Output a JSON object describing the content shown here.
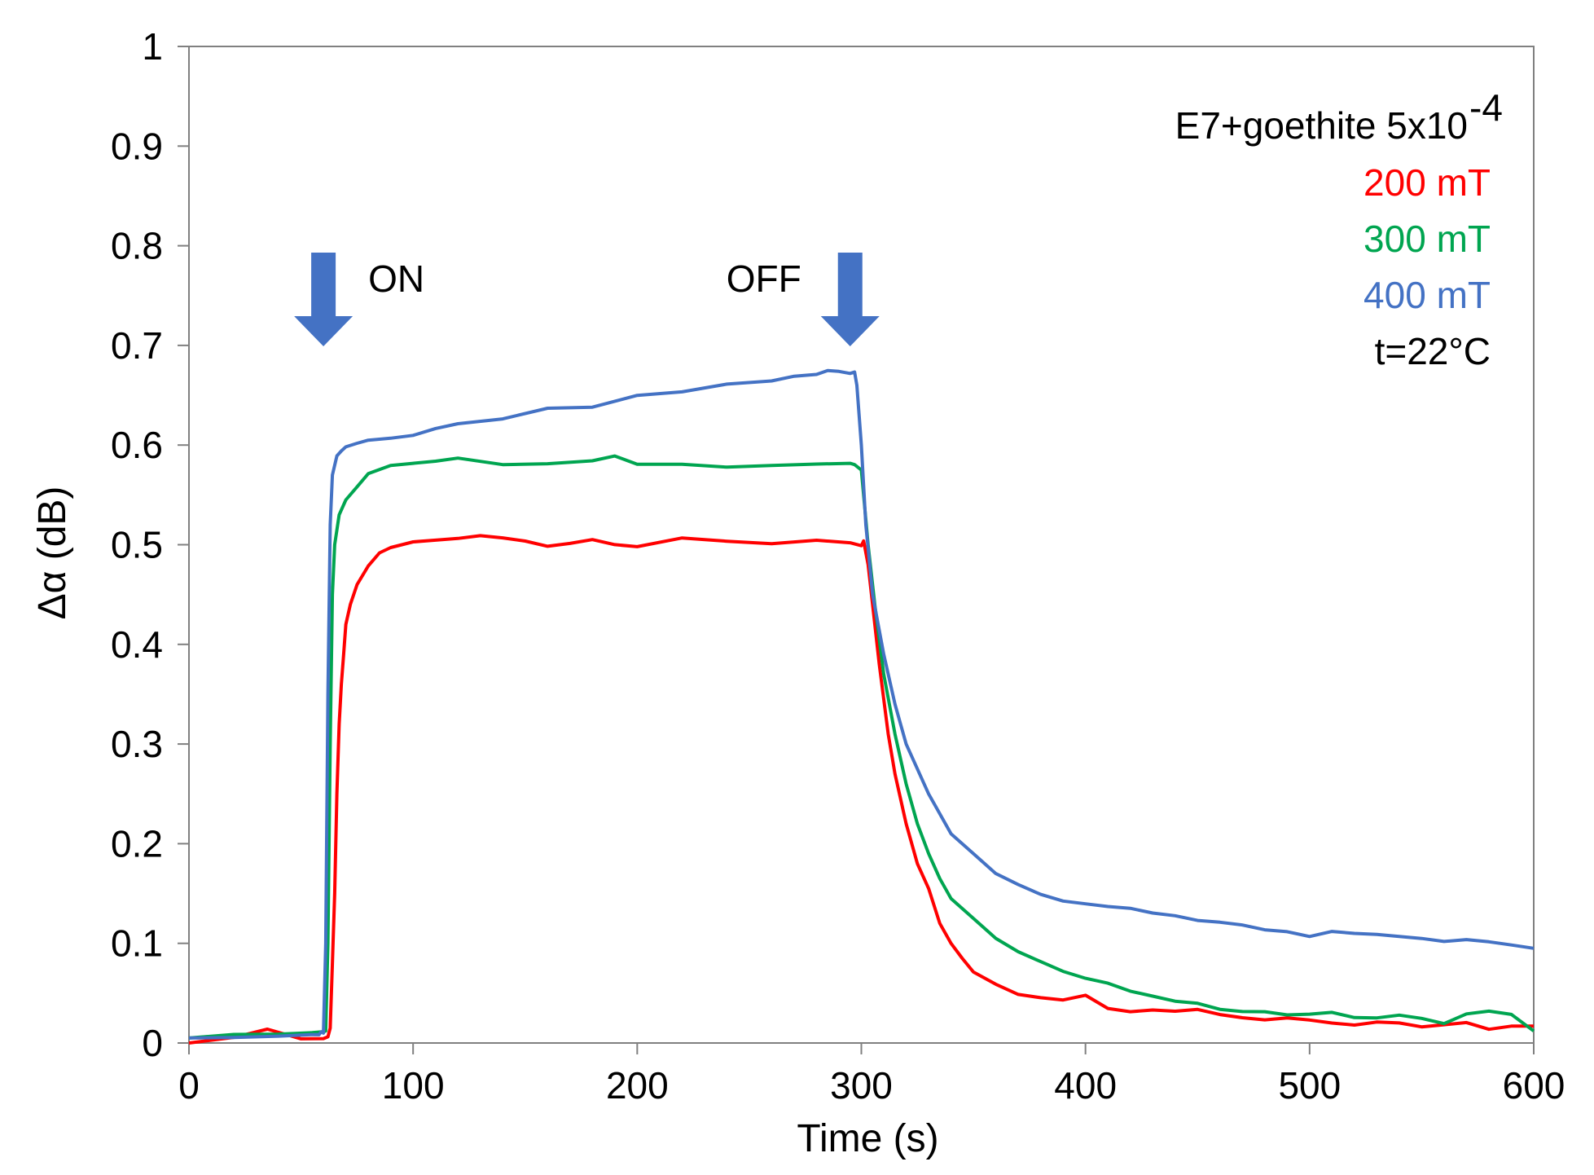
{
  "chart_data": {
    "type": "line",
    "title": "",
    "xlabel": "Time (s)",
    "ylabel": "Δα (dB)",
    "xlim": [
      0,
      600
    ],
    "ylim": [
      0,
      1
    ],
    "xticks": [
      0,
      100,
      200,
      300,
      400,
      500,
      600
    ],
    "yticks": [
      0,
      0.1,
      0.2,
      0.3,
      0.4,
      0.5,
      0.6,
      0.7,
      0.8,
      0.9,
      1
    ],
    "xtick_labels": [
      "0",
      "100",
      "200",
      "300",
      "400",
      "500",
      "600"
    ],
    "ytick_labels": [
      "0",
      "0.1",
      "0.2",
      "0.3",
      "0.4",
      "0.5",
      "0.6",
      "0.7",
      "0.8",
      "0.9",
      "1"
    ],
    "grid": false,
    "legend_position": "top-right",
    "legend": {
      "header": "E7+goethite 5x10",
      "header_superscript": "-4",
      "footer": "t=22°C"
    },
    "annotations": [
      {
        "text": "ON",
        "arrow_at_x": 60,
        "arrow_color": "#4472C4"
      },
      {
        "text": "OFF",
        "arrow_at_x": 295,
        "arrow_color": "#4472C4"
      }
    ],
    "series": [
      {
        "name": "200 mT",
        "color": "#FF0000",
        "x": [
          0,
          20,
          35,
          50,
          60,
          62,
          63,
          64,
          65,
          66,
          67,
          68,
          69,
          70,
          72,
          75,
          80,
          85,
          90,
          100,
          110,
          120,
          130,
          140,
          150,
          160,
          170,
          180,
          190,
          200,
          220,
          240,
          260,
          280,
          295,
          300,
          301,
          303,
          305,
          308,
          312,
          315,
          320,
          325,
          330,
          335,
          340,
          345,
          350,
          360,
          370,
          380,
          390,
          400,
          410,
          420,
          430,
          440,
          450,
          460,
          470,
          480,
          490,
          500,
          510,
          520,
          530,
          540,
          550,
          560,
          570,
          580,
          590,
          600
        ],
        "y": [
          0.0,
          0.005,
          0.012,
          0.005,
          0.005,
          0.008,
          0.015,
          0.08,
          0.15,
          0.25,
          0.32,
          0.36,
          0.39,
          0.42,
          0.44,
          0.46,
          0.48,
          0.49,
          0.497,
          0.503,
          0.505,
          0.507,
          0.51,
          0.508,
          0.505,
          0.5,
          0.503,
          0.507,
          0.502,
          0.5,
          0.505,
          0.505,
          0.5,
          0.505,
          0.5,
          0.5,
          0.502,
          0.48,
          0.44,
          0.38,
          0.31,
          0.27,
          0.22,
          0.18,
          0.155,
          0.12,
          0.1,
          0.085,
          0.07,
          0.058,
          0.048,
          0.045,
          0.043,
          0.048,
          0.035,
          0.032,
          0.034,
          0.033,
          0.035,
          0.03,
          0.027,
          0.025,
          0.027,
          0.025,
          0.022,
          0.02,
          0.023,
          0.022,
          0.018,
          0.02,
          0.022,
          0.015,
          0.018,
          0.017
        ]
      },
      {
        "name": "300 mT",
        "color": "#00A550",
        "x": [
          0,
          20,
          40,
          55,
          60,
          61,
          62,
          63,
          64,
          65,
          67,
          70,
          75,
          80,
          90,
          100,
          110,
          120,
          140,
          160,
          180,
          190,
          200,
          220,
          240,
          260,
          280,
          295,
          297,
          300,
          303,
          306,
          310,
          315,
          320,
          325,
          330,
          335,
          340,
          350,
          360,
          370,
          380,
          390,
          400,
          410,
          420,
          430,
          440,
          450,
          460,
          470,
          480,
          490,
          500,
          510,
          520,
          530,
          540,
          550,
          560,
          570,
          580,
          590,
          600
        ],
        "y": [
          0.005,
          0.008,
          0.01,
          0.012,
          0.012,
          0.012,
          0.1,
          0.3,
          0.45,
          0.5,
          0.53,
          0.545,
          0.56,
          0.57,
          0.578,
          0.58,
          0.582,
          0.585,
          0.582,
          0.58,
          0.585,
          0.59,
          0.582,
          0.58,
          0.578,
          0.58,
          0.58,
          0.58,
          0.58,
          0.575,
          0.5,
          0.44,
          0.37,
          0.31,
          0.26,
          0.22,
          0.19,
          0.165,
          0.145,
          0.125,
          0.105,
          0.09,
          0.08,
          0.07,
          0.063,
          0.058,
          0.05,
          0.045,
          0.04,
          0.038,
          0.032,
          0.03,
          0.03,
          0.027,
          0.028,
          0.03,
          0.025,
          0.025,
          0.028,
          0.025,
          0.02,
          0.03,
          0.033,
          0.03,
          0.012
        ]
      },
      {
        "name": "400 mT",
        "color": "#4472C4",
        "x": [
          0,
          20,
          40,
          55,
          58,
          59,
          60,
          61,
          62,
          63,
          64,
          66,
          68,
          70,
          75,
          80,
          90,
          100,
          110,
          120,
          140,
          160,
          180,
          200,
          220,
          240,
          260,
          270,
          280,
          285,
          290,
          295,
          297,
          298,
          300,
          302,
          305,
          310,
          315,
          320,
          330,
          340,
          350,
          360,
          370,
          380,
          390,
          400,
          410,
          420,
          430,
          440,
          450,
          460,
          470,
          480,
          490,
          500,
          510,
          520,
          530,
          540,
          550,
          560,
          570,
          580,
          590,
          600
        ],
        "y": [
          0.005,
          0.005,
          0.008,
          0.01,
          0.01,
          0.01,
          0.01,
          0.1,
          0.35,
          0.52,
          0.57,
          0.59,
          0.596,
          0.6,
          0.602,
          0.603,
          0.605,
          0.608,
          0.615,
          0.62,
          0.628,
          0.635,
          0.64,
          0.648,
          0.655,
          0.66,
          0.665,
          0.67,
          0.672,
          0.676,
          0.672,
          0.672,
          0.672,
          0.66,
          0.6,
          0.52,
          0.45,
          0.39,
          0.34,
          0.3,
          0.25,
          0.21,
          0.19,
          0.17,
          0.16,
          0.15,
          0.143,
          0.14,
          0.137,
          0.135,
          0.13,
          0.127,
          0.122,
          0.12,
          0.117,
          0.112,
          0.11,
          0.105,
          0.11,
          0.108,
          0.107,
          0.105,
          0.103,
          0.1,
          0.102,
          0.1,
          0.097,
          0.095
        ]
      }
    ]
  }
}
